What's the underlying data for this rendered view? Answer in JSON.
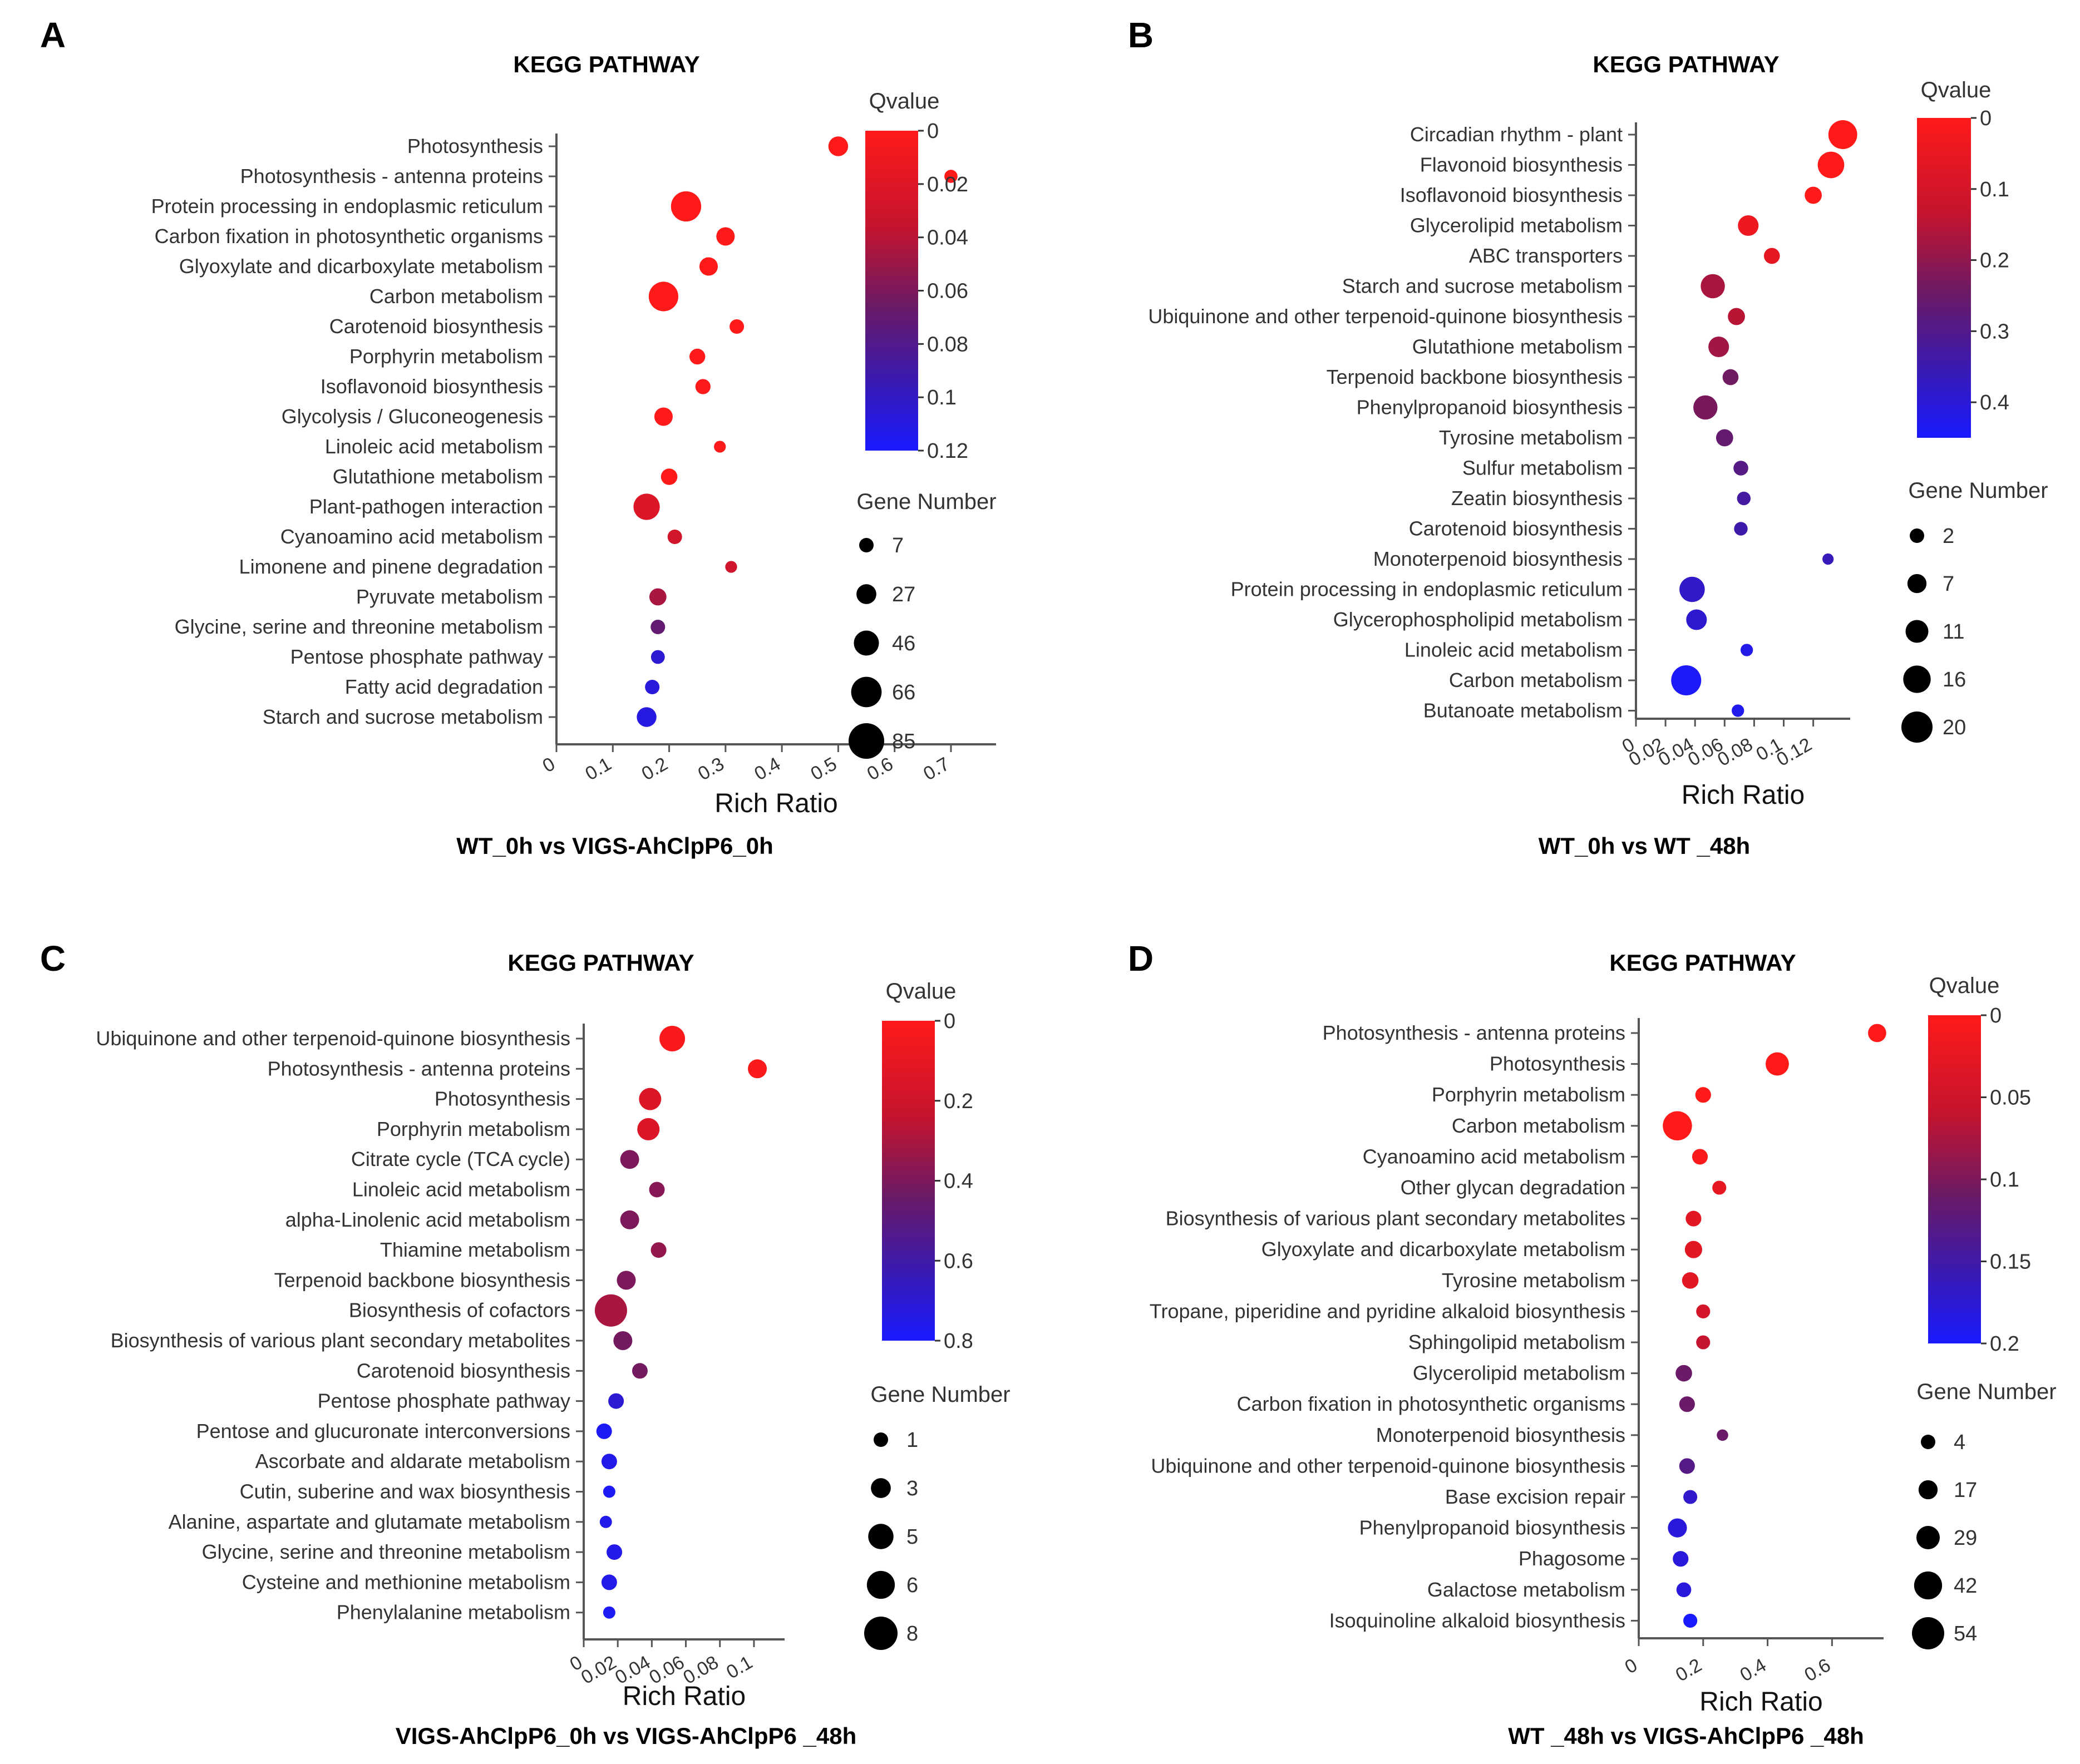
{
  "figure": {
    "background": "#ffffff"
  },
  "chart_data": [
    {
      "type": "scatter",
      "panel_label": "A",
      "title": "KEGG PATHWAY",
      "subtitle": "WT_0h vs VIGS-AhClpP6_0h",
      "xlabel": "Rich Ratio",
      "xlim": [
        0,
        0.78
      ],
      "xticks": [
        0,
        0.1,
        0.2,
        0.3,
        0.4,
        0.5,
        0.6,
        0.7
      ],
      "xtick_labels": [
        "0",
        "0.1",
        "0.2",
        "0.3",
        "0.4",
        "0.5",
        "0.6",
        "0.7"
      ],
      "color_title": "Qvalue",
      "color_range": [
        0,
        0.12
      ],
      "color_ticks": [
        0,
        0.02,
        0.04,
        0.06,
        0.08,
        0.1,
        0.12
      ],
      "color_tick_labels": [
        "0",
        "0.02",
        "0.04",
        "0.06",
        "0.08",
        "0.1",
        "0.12"
      ],
      "color_low": "#ff1a1a",
      "color_high": "#1a1aff",
      "size_title": "Gene Number",
      "size_ticks": [
        7,
        27,
        46,
        66,
        85
      ],
      "size_range": [
        7,
        85
      ],
      "pathways": [
        "Photosynthesis",
        "Photosynthesis - antenna proteins",
        "Protein processing in endoplasmic reticulum",
        "Carbon fixation in photosynthetic organisms",
        "Glyoxylate and dicarboxylate metabolism",
        "Carbon metabolism",
        "Carotenoid biosynthesis",
        "Porphyrin metabolism",
        "Isoflavonoid biosynthesis",
        "Glycolysis / Gluconeogenesis",
        "Linoleic acid metabolism",
        "Glutathione metabolism",
        "Plant-pathogen interaction",
        "Cyanoamino acid metabolism",
        "Limonene and pinene degradation",
        "Pyruvate metabolism",
        "Glycine, serine and threonine metabolism",
        "Pentose phosphate pathway",
        "Fatty acid degradation",
        "Starch and sucrose metabolism"
      ],
      "rich_ratio": [
        0.5,
        0.7,
        0.23,
        0.3,
        0.27,
        0.19,
        0.32,
        0.25,
        0.26,
        0.19,
        0.29,
        0.2,
        0.16,
        0.21,
        0.31,
        0.18,
        0.18,
        0.18,
        0.17,
        0.16
      ],
      "qvalue": [
        0.0,
        0.0,
        0.0,
        0.0,
        0.0,
        0.0,
        0.0,
        0.0,
        0.002,
        0.0,
        0.002,
        0.0,
        0.022,
        0.028,
        0.03,
        0.045,
        0.07,
        0.105,
        0.108,
        0.11
      ],
      "gene_number": [
        40,
        20,
        72,
        36,
        36,
        70,
        24,
        28,
        26,
        36,
        16,
        30,
        60,
        24,
        16,
        32,
        24,
        22,
        24,
        40
      ]
    },
    {
      "type": "scatter",
      "panel_label": "B",
      "title": "KEGG PATHWAY",
      "subtitle": "WT_0h vs WT _48h",
      "xlabel": "Rich Ratio",
      "xlim": [
        0,
        0.145
      ],
      "xticks": [
        0,
        0.02,
        0.04,
        0.06,
        0.08,
        0.1,
        0.12
      ],
      "xtick_labels": [
        "0",
        "0.02",
        "0.04",
        "0.06",
        "0.08",
        "0.1",
        "0.12"
      ],
      "color_title": "Qvalue",
      "color_range": [
        0,
        0.45
      ],
      "color_ticks": [
        0,
        0.1,
        0.2,
        0.3,
        0.4
      ],
      "color_tick_labels": [
        "0",
        "0.1",
        "0.2",
        "0.3",
        "0.4"
      ],
      "color_low": "#ff1a1a",
      "color_high": "#1a1aff",
      "size_title": "Gene Number",
      "size_ticks": [
        2,
        7,
        11,
        16,
        20
      ],
      "size_range": [
        2,
        20
      ],
      "pathways": [
        "Circadian rhythm - plant",
        "Flavonoid biosynthesis",
        "Isoflavonoid biosynthesis",
        "Glycerolipid metabolism",
        "ABC transporters",
        "Starch and sucrose metabolism",
        "Ubiquinone and other terpenoid-quinone biosynthesis",
        "Glutathione metabolism",
        "Terpenoid backbone biosynthesis",
        "Phenylpropanoid biosynthesis",
        "Tyrosine metabolism",
        "Sulfur metabolism",
        "Zeatin biosynthesis",
        "Carotenoid biosynthesis",
        "Monoterpenoid biosynthesis",
        "Protein processing in endoplasmic reticulum",
        "Glycerophospholipid metabolism",
        "Linoleic acid metabolism",
        "Carbon metabolism",
        "Butanoate metabolism"
      ],
      "rich_ratio": [
        0.14,
        0.132,
        0.12,
        0.076,
        0.092,
        0.052,
        0.068,
        0.056,
        0.064,
        0.047,
        0.06,
        0.071,
        0.073,
        0.071,
        0.13,
        0.038,
        0.041,
        0.075,
        0.034,
        0.069
      ],
      "qvalue": [
        0.0,
        0.0,
        0.0,
        0.04,
        0.06,
        0.17,
        0.15,
        0.18,
        0.24,
        0.23,
        0.26,
        0.29,
        0.33,
        0.34,
        0.36,
        0.38,
        0.39,
        0.42,
        0.44,
        0.43
      ],
      "gene_number": [
        19,
        17,
        9,
        12,
        8,
        15,
        9,
        12,
        8,
        15,
        9,
        7,
        6,
        6,
        4,
        16,
        12,
        5,
        20,
        5
      ]
    },
    {
      "type": "scatter",
      "panel_label": "C",
      "title": "KEGG PATHWAY",
      "subtitle": "VIGS-AhClpP6_0h vs VIGS-AhClpP6 _48h",
      "xlabel": "Rich Ratio",
      "xlim": [
        0,
        0.118
      ],
      "xticks": [
        0,
        0.02,
        0.04,
        0.06,
        0.08,
        0.1
      ],
      "xtick_labels": [
        "0",
        "0.02",
        "0.04",
        "0.06",
        "0.08",
        "0.1"
      ],
      "color_title": "Qvalue",
      "color_range": [
        0,
        0.8
      ],
      "color_ticks": [
        0,
        0.2,
        0.4,
        0.6,
        0.8
      ],
      "color_tick_labels": [
        "0",
        "0.2",
        "0.4",
        "0.6",
        "0.8"
      ],
      "color_low": "#ff1a1a",
      "color_high": "#1a1aff",
      "size_title": "Gene Number",
      "size_ticks": [
        1,
        3,
        5,
        6,
        8
      ],
      "size_range": [
        1,
        8
      ],
      "pathways": [
        "Ubiquinone and other terpenoid-quinone biosynthesis",
        "Photosynthesis - antenna proteins",
        "Photosynthesis",
        "Porphyrin metabolism",
        "Citrate cycle (TCA cycle)",
        "Linoleic acid metabolism",
        "alpha-Linolenic acid metabolism",
        "Thiamine metabolism",
        "Terpenoid backbone biosynthesis",
        "Biosynthesis of cofactors",
        "Biosynthesis of various plant secondary metabolites",
        "Carotenoid biosynthesis",
        "Pentose phosphate pathway",
        "Pentose and glucuronate interconversions",
        "Ascorbate and aldarate metabolism",
        "Cutin, suberine and wax biosynthesis",
        "Alanine, aspartate and glutamate metabolism",
        "Glycine, serine and threonine metabolism",
        "Cysteine and methionine metabolism",
        "Phenylalanine metabolism"
      ],
      "rich_ratio": [
        0.052,
        0.102,
        0.039,
        0.038,
        0.027,
        0.043,
        0.027,
        0.044,
        0.025,
        0.016,
        0.023,
        0.033,
        0.019,
        0.012,
        0.015,
        0.015,
        0.013,
        0.018,
        0.015,
        0.015
      ],
      "qvalue": [
        0.02,
        0.02,
        0.15,
        0.15,
        0.4,
        0.38,
        0.4,
        0.35,
        0.4,
        0.3,
        0.42,
        0.42,
        0.7,
        0.78,
        0.75,
        0.78,
        0.75,
        0.75,
        0.75,
        0.78
      ],
      "gene_number": [
        6,
        4,
        5,
        5,
        4,
        3,
        4,
        3,
        4,
        8,
        4,
        3,
        3,
        3,
        3,
        2,
        2,
        3,
        3,
        2
      ]
    },
    {
      "type": "scatter",
      "panel_label": "D",
      "title": "KEGG PATHWAY",
      "subtitle": "WT _48h vs VIGS-AhClpP6 _48h",
      "xlabel": "Rich Ratio",
      "xlim": [
        0,
        0.76
      ],
      "xticks": [
        0,
        0.2,
        0.4,
        0.6
      ],
      "xtick_labels": [
        "0",
        "0.2",
        "0.4",
        "0.6"
      ],
      "color_title": "Qvalue",
      "color_range": [
        0,
        0.2
      ],
      "color_ticks": [
        0,
        0.05,
        0.1,
        0.15,
        0.2
      ],
      "color_tick_labels": [
        "0",
        "0.05",
        "0.1",
        "0.15",
        "0.2"
      ],
      "color_low": "#ff1a1a",
      "color_high": "#1a1aff",
      "size_title": "Gene Number",
      "size_ticks": [
        4,
        17,
        29,
        42,
        54
      ],
      "size_range": [
        4,
        54
      ],
      "pathways": [
        "Photosynthesis - antenna proteins",
        "Photosynthesis",
        "Porphyrin metabolism",
        "Carbon metabolism",
        "Cyanoamino acid metabolism",
        "Other glycan degradation",
        "Biosynthesis of various plant secondary metabolites",
        "Glyoxylate and dicarboxylate metabolism",
        "Tyrosine metabolism",
        "Tropane, piperidine and pyridine alkaloid biosynthesis",
        "Sphingolipid metabolism",
        "Glycerolipid metabolism",
        "Carbon fixation in photosynthetic organisms",
        "Monoterpenoid biosynthesis",
        "Ubiquinone and other terpenoid-quinone biosynthesis",
        "Base excision repair",
        "Phenylpropanoid biosynthesis",
        "Phagosome",
        "Galactose metabolism",
        "Isoquinoline alkaloid biosynthesis"
      ],
      "rich_ratio": [
        0.74,
        0.43,
        0.2,
        0.12,
        0.19,
        0.25,
        0.17,
        0.17,
        0.16,
        0.2,
        0.2,
        0.14,
        0.15,
        0.26,
        0.15,
        0.16,
        0.12,
        0.13,
        0.14,
        0.16
      ],
      "qvalue": [
        0.0,
        0.0,
        0.0,
        0.0,
        0.005,
        0.025,
        0.03,
        0.03,
        0.03,
        0.045,
        0.06,
        0.11,
        0.11,
        0.11,
        0.13,
        0.17,
        0.18,
        0.18,
        0.18,
        0.2
      ],
      "gene_number": [
        26,
        38,
        20,
        52,
        20,
        16,
        20,
        24,
        22,
        16,
        16,
        22,
        20,
        10,
        20,
        16,
        28,
        20,
        18,
        16
      ]
    }
  ]
}
